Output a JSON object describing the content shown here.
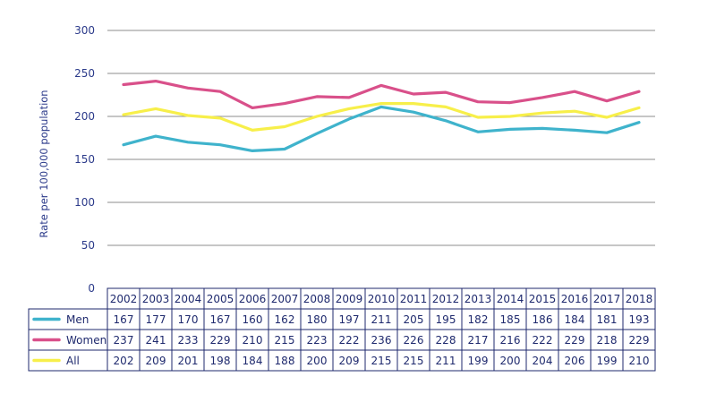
{
  "chart_data": {
    "type": "line",
    "ylabel": "Rate per 100,000 population",
    "ylim": [
      0,
      300
    ],
    "yticks": [
      0,
      50,
      100,
      150,
      200,
      250,
      300
    ],
    "grid": "horizontal",
    "legend": "data table, left",
    "categories": [
      "2002",
      "2003",
      "2004",
      "2005",
      "2006",
      "2007",
      "2008",
      "2009",
      "2010",
      "2011",
      "2012",
      "2013",
      "2014",
      "2015",
      "2016",
      "2017",
      "2018"
    ],
    "series": [
      {
        "name": "Men",
        "color": "#3fb3cc",
        "values": [
          167,
          177,
          170,
          167,
          160,
          162,
          180,
          197,
          211,
          205,
          195,
          182,
          185,
          186,
          184,
          181,
          193
        ]
      },
      {
        "name": "Women",
        "color": "#d9508a",
        "values": [
          237,
          241,
          233,
          229,
          210,
          215,
          223,
          222,
          236,
          226,
          228,
          217,
          216,
          222,
          229,
          218,
          229
        ]
      },
      {
        "name": "All",
        "color": "#f7ef4a",
        "values": [
          202,
          209,
          201,
          198,
          184,
          188,
          200,
          209,
          215,
          215,
          211,
          199,
          200,
          204,
          206,
          199,
          210
        ]
      }
    ],
    "table_data": {
      "Men": [
        167,
        177,
        170,
        167,
        160,
        162,
        180,
        197,
        211,
        205,
        195,
        182,
        185,
        186,
        184,
        181,
        193
      ],
      "Women": [
        237,
        241,
        233,
        229,
        210,
        215,
        223,
        222,
        236,
        226,
        228,
        217,
        216,
        222,
        229,
        218,
        229
      ],
      "All": [
        202,
        209,
        201,
        198,
        184,
        188,
        200,
        209,
        215,
        215,
        211,
        199,
        200,
        204,
        206,
        199,
        210
      ]
    }
  }
}
